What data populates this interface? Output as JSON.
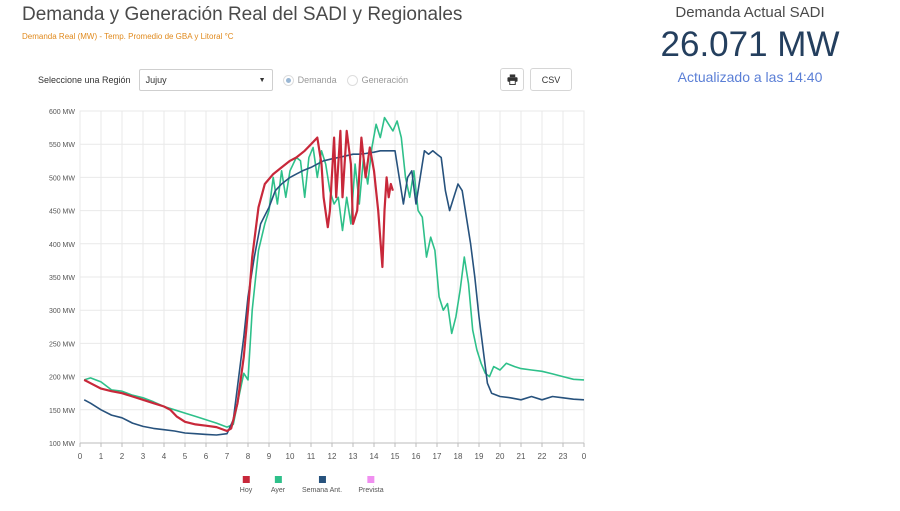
{
  "title": "Demanda y Generación Real del SADI y Regionales",
  "subtitle": "Demanda Real (MW) - Temp. Promedio de GBA y Litoral °C",
  "current": {
    "label": "Demanda Actual SADI",
    "value": "26.071 MW",
    "updated": "Actualizado a las 14:40"
  },
  "controls": {
    "region_label": "Seleccione una Región",
    "region_value": "Jujuy",
    "radio_demand": "Demanda",
    "radio_generation": "Generación",
    "selected": "Demanda",
    "csv_label": "CSV",
    "print_icon": "printer-icon"
  },
  "colors": {
    "hoy": "#c8283a",
    "ayer": "#2ec08a",
    "semana": "#27527d",
    "prevista": "#f08ff0"
  },
  "chart_data": {
    "type": "line",
    "x_unit": "hour",
    "xlim": [
      0,
      24
    ],
    "x_ticks": [
      "0",
      "1",
      "2",
      "3",
      "4",
      "5",
      "6",
      "7",
      "8",
      "9",
      "10",
      "11",
      "12",
      "13",
      "14",
      "15",
      "16",
      "17",
      "18",
      "19",
      "20",
      "21",
      "22",
      "23",
      "0"
    ],
    "ylim": [
      100,
      600
    ],
    "y_ticks": [
      "100 MW",
      "150 MW",
      "200 MW",
      "250 MW",
      "300 MW",
      "350 MW",
      "400 MW",
      "450 MW",
      "500 MW",
      "550 MW",
      "600 MW"
    ],
    "grid": true,
    "legend_position": "bottom",
    "series": [
      {
        "name": "Hoy",
        "color_key": "hoy",
        "points": [
          [
            0.2,
            195
          ],
          [
            0.5,
            190
          ],
          [
            1.0,
            182
          ],
          [
            1.5,
            178
          ],
          [
            2.0,
            175
          ],
          [
            2.5,
            170
          ],
          [
            3.0,
            165
          ],
          [
            3.5,
            160
          ],
          [
            4.0,
            155
          ],
          [
            4.3,
            150
          ],
          [
            4.6,
            140
          ],
          [
            5.0,
            132
          ],
          [
            5.5,
            128
          ],
          [
            6.0,
            126
          ],
          [
            6.5,
            124
          ],
          [
            7.0,
            118
          ],
          [
            7.2,
            122
          ],
          [
            7.5,
            160
          ],
          [
            7.8,
            230
          ],
          [
            8.0,
            300
          ],
          [
            8.2,
            380
          ],
          [
            8.5,
            455
          ],
          [
            8.8,
            490
          ],
          [
            9.2,
            505
          ],
          [
            9.6,
            515
          ],
          [
            10.0,
            525
          ],
          [
            10.3,
            530
          ],
          [
            10.7,
            540
          ],
          [
            11.0,
            550
          ],
          [
            11.3,
            560
          ],
          [
            11.5,
            520
          ],
          [
            11.6,
            470
          ],
          [
            11.8,
            425
          ],
          [
            11.9,
            450
          ],
          [
            12.1,
            560
          ],
          [
            12.2,
            470
          ],
          [
            12.4,
            570
          ],
          [
            12.5,
            470
          ],
          [
            12.7,
            570
          ],
          [
            12.9,
            520
          ],
          [
            13.0,
            430
          ],
          [
            13.2,
            450
          ],
          [
            13.4,
            560
          ],
          [
            13.6,
            500
          ],
          [
            13.8,
            545
          ],
          [
            14.0,
            510
          ],
          [
            14.2,
            450
          ],
          [
            14.4,
            365
          ],
          [
            14.5,
            450
          ],
          [
            14.6,
            500
          ],
          [
            14.7,
            470
          ],
          [
            14.8,
            490
          ],
          [
            14.9,
            480
          ]
        ]
      },
      {
        "name": "Ayer",
        "color_key": "ayer",
        "points": [
          [
            0.2,
            195
          ],
          [
            0.5,
            198
          ],
          [
            1.0,
            192
          ],
          [
            1.5,
            180
          ],
          [
            2.0,
            178
          ],
          [
            2.5,
            172
          ],
          [
            3.0,
            168
          ],
          [
            3.5,
            162
          ],
          [
            4.0,
            155
          ],
          [
            4.5,
            150
          ],
          [
            5.0,
            145
          ],
          [
            5.5,
            140
          ],
          [
            6.0,
            135
          ],
          [
            6.5,
            130
          ],
          [
            7.0,
            124
          ],
          [
            7.3,
            128
          ],
          [
            7.6,
            175
          ],
          [
            7.8,
            205
          ],
          [
            8.0,
            195
          ],
          [
            8.2,
            300
          ],
          [
            8.5,
            390
          ],
          [
            8.8,
            430
          ],
          [
            9.0,
            450
          ],
          [
            9.2,
            500
          ],
          [
            9.4,
            460
          ],
          [
            9.6,
            510
          ],
          [
            9.8,
            470
          ],
          [
            10.0,
            510
          ],
          [
            10.3,
            530
          ],
          [
            10.5,
            525
          ],
          [
            10.7,
            470
          ],
          [
            10.9,
            530
          ],
          [
            11.1,
            545
          ],
          [
            11.3,
            500
          ],
          [
            11.5,
            540
          ],
          [
            11.7,
            520
          ],
          [
            11.9,
            480
          ],
          [
            12.1,
            460
          ],
          [
            12.3,
            470
          ],
          [
            12.5,
            420
          ],
          [
            12.7,
            470
          ],
          [
            12.9,
            430
          ],
          [
            13.1,
            520
          ],
          [
            13.3,
            460
          ],
          [
            13.5,
            530
          ],
          [
            13.7,
            490
          ],
          [
            13.9,
            545
          ],
          [
            14.1,
            580
          ],
          [
            14.3,
            560
          ],
          [
            14.5,
            590
          ],
          [
            14.7,
            580
          ],
          [
            14.9,
            570
          ],
          [
            15.1,
            585
          ],
          [
            15.3,
            560
          ],
          [
            15.5,
            500
          ],
          [
            15.7,
            470
          ],
          [
            15.9,
            510
          ],
          [
            16.1,
            450
          ],
          [
            16.3,
            440
          ],
          [
            16.5,
            380
          ],
          [
            16.7,
            410
          ],
          [
            16.9,
            390
          ],
          [
            17.1,
            320
          ],
          [
            17.3,
            300
          ],
          [
            17.5,
            310
          ],
          [
            17.7,
            265
          ],
          [
            17.9,
            290
          ],
          [
            18.1,
            330
          ],
          [
            18.3,
            380
          ],
          [
            18.5,
            340
          ],
          [
            18.7,
            270
          ],
          [
            18.9,
            240
          ],
          [
            19.1,
            220
          ],
          [
            19.3,
            205
          ],
          [
            19.5,
            200
          ],
          [
            19.7,
            215
          ],
          [
            20.0,
            210
          ],
          [
            20.3,
            220
          ],
          [
            20.7,
            215
          ],
          [
            21.0,
            212
          ],
          [
            21.5,
            210
          ],
          [
            22.0,
            208
          ],
          [
            22.5,
            204
          ],
          [
            23.0,
            200
          ],
          [
            23.5,
            196
          ],
          [
            24.0,
            195
          ]
        ]
      },
      {
        "name": "Semana Ant.",
        "color_key": "semana",
        "points": [
          [
            0.2,
            165
          ],
          [
            0.5,
            160
          ],
          [
            1.0,
            150
          ],
          [
            1.5,
            142
          ],
          [
            2.0,
            138
          ],
          [
            2.5,
            130
          ],
          [
            3.0,
            125
          ],
          [
            3.5,
            122
          ],
          [
            4.0,
            120
          ],
          [
            4.5,
            118
          ],
          [
            5.0,
            115
          ],
          [
            5.5,
            114
          ],
          [
            6.0,
            113
          ],
          [
            6.5,
            112
          ],
          [
            7.0,
            114
          ],
          [
            7.3,
            135
          ],
          [
            7.6,
            210
          ],
          [
            7.8,
            260
          ],
          [
            8.0,
            320
          ],
          [
            8.3,
            380
          ],
          [
            8.6,
            430
          ],
          [
            9.0,
            455
          ],
          [
            9.3,
            480
          ],
          [
            9.6,
            490
          ],
          [
            10.0,
            500
          ],
          [
            10.3,
            505
          ],
          [
            10.6,
            510
          ],
          [
            11.0,
            515
          ],
          [
            11.3,
            520
          ],
          [
            11.6,
            525
          ],
          [
            12.0,
            528
          ],
          [
            12.3,
            530
          ],
          [
            12.6,
            532
          ],
          [
            13.0,
            535
          ],
          [
            13.3,
            535
          ],
          [
            13.6,
            536
          ],
          [
            14.0,
            538
          ],
          [
            14.3,
            540
          ],
          [
            14.6,
            540
          ],
          [
            15.0,
            540
          ],
          [
            15.2,
            500
          ],
          [
            15.4,
            460
          ],
          [
            15.6,
            500
          ],
          [
            15.8,
            510
          ],
          [
            16.0,
            460
          ],
          [
            16.2,
            500
          ],
          [
            16.4,
            540
          ],
          [
            16.6,
            535
          ],
          [
            16.8,
            540
          ],
          [
            17.0,
            535
          ],
          [
            17.2,
            530
          ],
          [
            17.4,
            480
          ],
          [
            17.6,
            450
          ],
          [
            17.8,
            470
          ],
          [
            18.0,
            490
          ],
          [
            18.2,
            480
          ],
          [
            18.4,
            440
          ],
          [
            18.6,
            400
          ],
          [
            18.8,
            350
          ],
          [
            19.0,
            290
          ],
          [
            19.2,
            240
          ],
          [
            19.4,
            190
          ],
          [
            19.6,
            175
          ],
          [
            20.0,
            170
          ],
          [
            20.5,
            168
          ],
          [
            21.0,
            165
          ],
          [
            21.5,
            170
          ],
          [
            22.0,
            165
          ],
          [
            22.5,
            170
          ],
          [
            23.0,
            168
          ],
          [
            23.5,
            166
          ],
          [
            24.0,
            165
          ]
        ]
      },
      {
        "name": "Prevista",
        "color_key": "prevista",
        "points": []
      }
    ]
  }
}
